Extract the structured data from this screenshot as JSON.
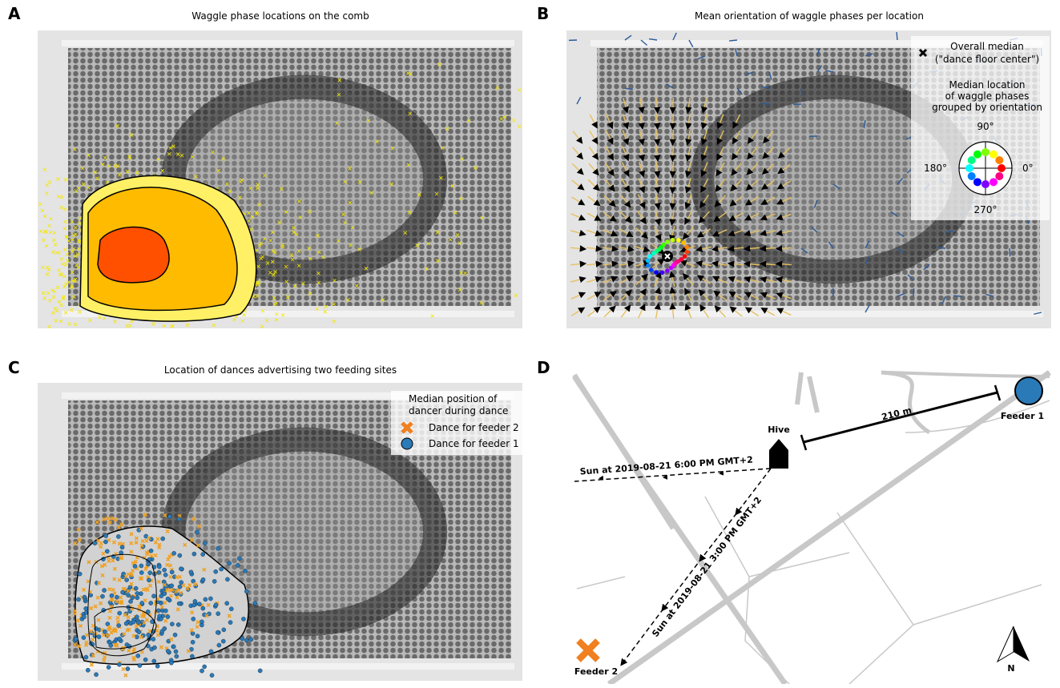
{
  "panels": [
    {
      "label": "A",
      "title": "Waggle phase locations on the comb"
    },
    {
      "label": "B",
      "title": "Mean orientation of waggle phases per location",
      "legend": {
        "marker": "Overall median",
        "marker_note": "(\"dance floor center\")",
        "group_title": [
          "Median location",
          "of waggle phases",
          "grouped by orientation"
        ],
        "angles": [
          "90°",
          "180°",
          "0°",
          "270°"
        ]
      }
    },
    {
      "label": "C",
      "title": "Location of dances advertising two feeding sites",
      "legend": {
        "title": [
          "Median position of",
          "dancer during dance"
        ],
        "entries": [
          "Dance for feeder 2",
          "Dance for feeder 1"
        ]
      }
    },
    {
      "label": "D",
      "map": {
        "hive": "Hive",
        "feeder1": "Feeder 1",
        "feeder2": "Feeder 2",
        "distance": "210 m",
        "sun1": "Sun at 2019-08-21 6:00 PM GMT+2",
        "sun2": "Sun at 2019-08-21 3:00 PM GMT+2",
        "north": "N"
      }
    }
  ]
}
